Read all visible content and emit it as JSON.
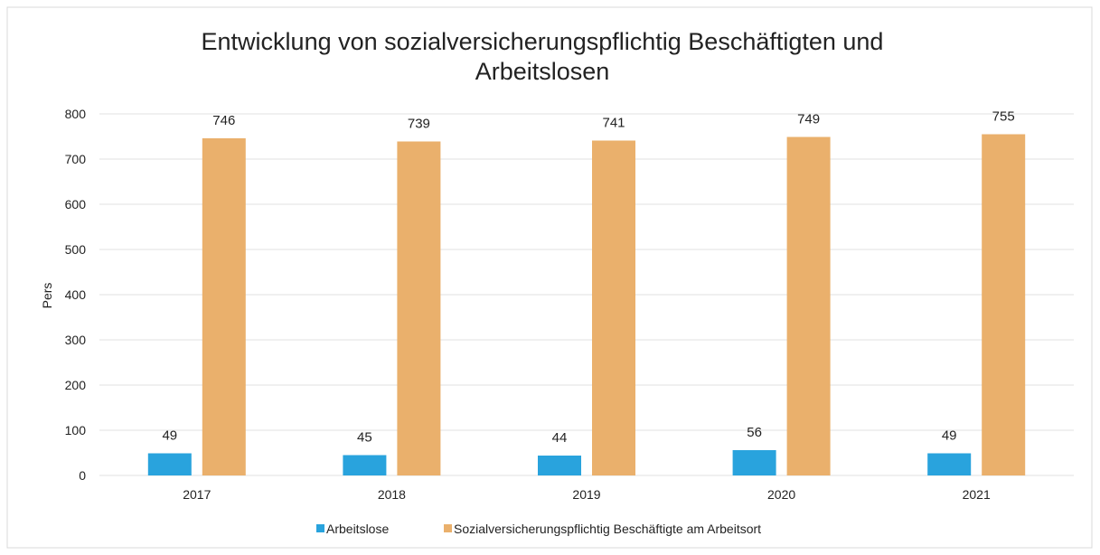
{
  "chart_data": {
    "type": "bar",
    "title": "Entwicklung von sozialversicherungspflichtig Beschäftigten und Arbeitslosen",
    "title_lines": [
      "Entwicklung von sozialversicherungspflichtig Beschäftigten und",
      "Arbeitslosen"
    ],
    "ylabel": "Pers",
    "xlabel": "",
    "categories": [
      "2017",
      "2018",
      "2019",
      "2020",
      "2021"
    ],
    "ylim": [
      0,
      800
    ],
    "yticks": [
      "0",
      "100",
      "200",
      "300",
      "400",
      "500",
      "600",
      "700",
      "800"
    ],
    "grid": true,
    "legend_position": "bottom",
    "series": [
      {
        "name": "Arbeitslose",
        "color": "#29a3dd",
        "values": [
          49,
          45,
          44,
          56,
          49
        ]
      },
      {
        "name": "Sozialversicherungspflichtig Beschäftigte am Arbeitsort",
        "color": "#eab06c",
        "values": [
          746,
          739,
          741,
          749,
          755
        ]
      }
    ]
  }
}
